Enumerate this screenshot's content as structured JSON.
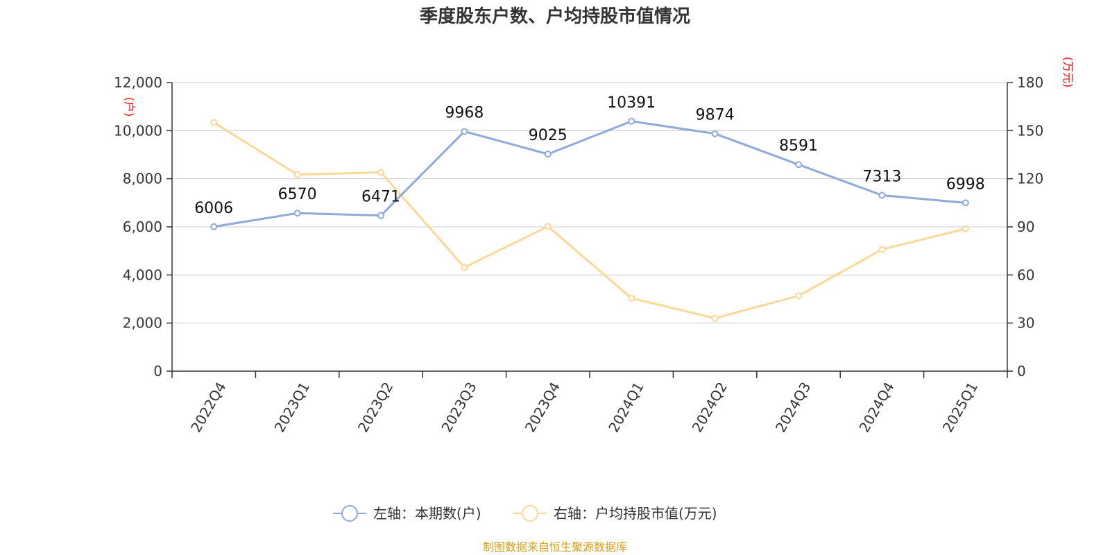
{
  "chart_data": {
    "type": "line",
    "title": "季度股东户数、户均持股市值情况",
    "categories": [
      "2022Q4",
      "2023Q1",
      "2023Q2",
      "2023Q3",
      "2023Q4",
      "2024Q1",
      "2024Q2",
      "2024Q3",
      "2024Q4",
      "2025Q1"
    ],
    "left_axis": {
      "unit": "(户)",
      "ylim": [
        0,
        12000
      ],
      "ticks": [
        0,
        2000,
        4000,
        6000,
        8000,
        10000,
        12000
      ],
      "tick_labels": [
        "0",
        "2,000",
        "4,000",
        "6,000",
        "8,000",
        "10,000",
        "12,000"
      ]
    },
    "right_axis": {
      "unit": "(万元)",
      "ylim": [
        0,
        180
      ],
      "ticks": [
        0,
        30,
        60,
        90,
        120,
        150,
        180
      ],
      "tick_labels": [
        "0",
        "30",
        "60",
        "90",
        "120",
        "150",
        "180"
      ]
    },
    "series": [
      {
        "name": "左轴：本期数(户)",
        "axis": "left",
        "color": "#8eaad8",
        "values": [
          6006,
          6570,
          6471,
          9968,
          9025,
          10391,
          9874,
          8591,
          7313,
          6998
        ],
        "labels": [
          "6006",
          "6570",
          "6471",
          "9968",
          "9025",
          "10391",
          "9874",
          "8591",
          "7313",
          "6998"
        ]
      },
      {
        "name": "右轴：户均持股市值(万元)",
        "axis": "right",
        "color": "#fcd897",
        "values": [
          155.1,
          122.6,
          124.0,
          64.7,
          90.3,
          45.5,
          33.0,
          47.0,
          75.9,
          88.8
        ]
      }
    ],
    "grid": true,
    "legend_position": "bottom"
  },
  "source": "制图数据来自恒生聚源数据库"
}
